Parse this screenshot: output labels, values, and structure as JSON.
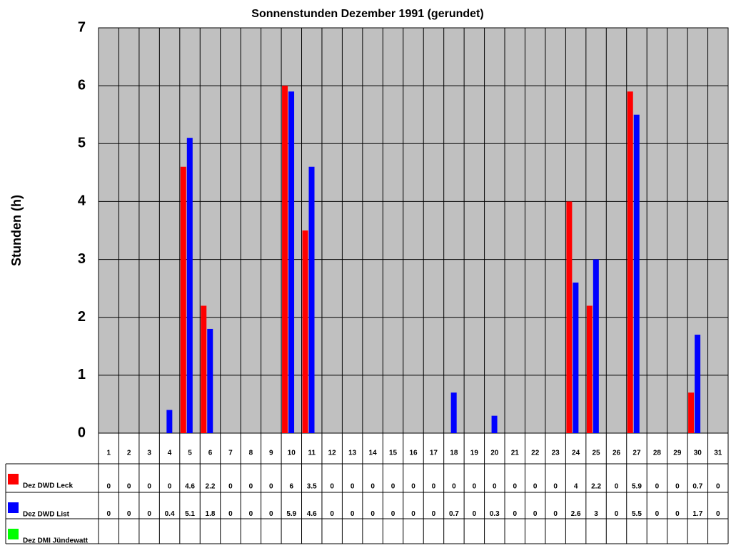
{
  "chart_data": {
    "type": "bar",
    "title": "Sonnenstunden Dezember 1991 (gerundet)",
    "y_label": "Stunden (h)",
    "categories": [
      1,
      2,
      3,
      4,
      5,
      6,
      7,
      8,
      9,
      10,
      11,
      12,
      13,
      14,
      15,
      16,
      17,
      18,
      19,
      20,
      21,
      22,
      23,
      24,
      25,
      26,
      27,
      28,
      29,
      30,
      31
    ],
    "series": [
      {
        "name": "Dez DWD Leck",
        "color": "#ff0000",
        "values": [
          0,
          0,
          0,
          0,
          4.6,
          2.2,
          0,
          0,
          0,
          6,
          3.5,
          0,
          0,
          0,
          0,
          0,
          0,
          0,
          0,
          0,
          0,
          0,
          0,
          4,
          2.2,
          0,
          5.9,
          0,
          0,
          0.7,
          0
        ]
      },
      {
        "name": "Dez DWD List",
        "color": "#0000ff",
        "values": [
          0,
          0,
          0,
          0.4,
          5.1,
          1.8,
          0,
          0,
          0,
          5.9,
          4.6,
          0,
          0,
          0,
          0,
          0,
          0,
          0.7,
          0,
          0.3,
          0,
          0,
          0,
          2.6,
          3,
          0,
          5.5,
          0,
          0,
          1.7,
          0
        ]
      },
      {
        "name": "Dez DMI Jündewatt",
        "color": "#00ff00",
        "values": [
          null,
          null,
          null,
          null,
          null,
          null,
          null,
          null,
          null,
          null,
          null,
          null,
          null,
          null,
          null,
          null,
          null,
          null,
          null,
          null,
          null,
          null,
          null,
          null,
          null,
          null,
          null,
          null,
          null,
          null,
          null
        ]
      }
    ],
    "ylim": [
      0,
      7
    ],
    "yticks": [
      0,
      1,
      2,
      3,
      4,
      5,
      6,
      7
    ],
    "grid": true
  }
}
